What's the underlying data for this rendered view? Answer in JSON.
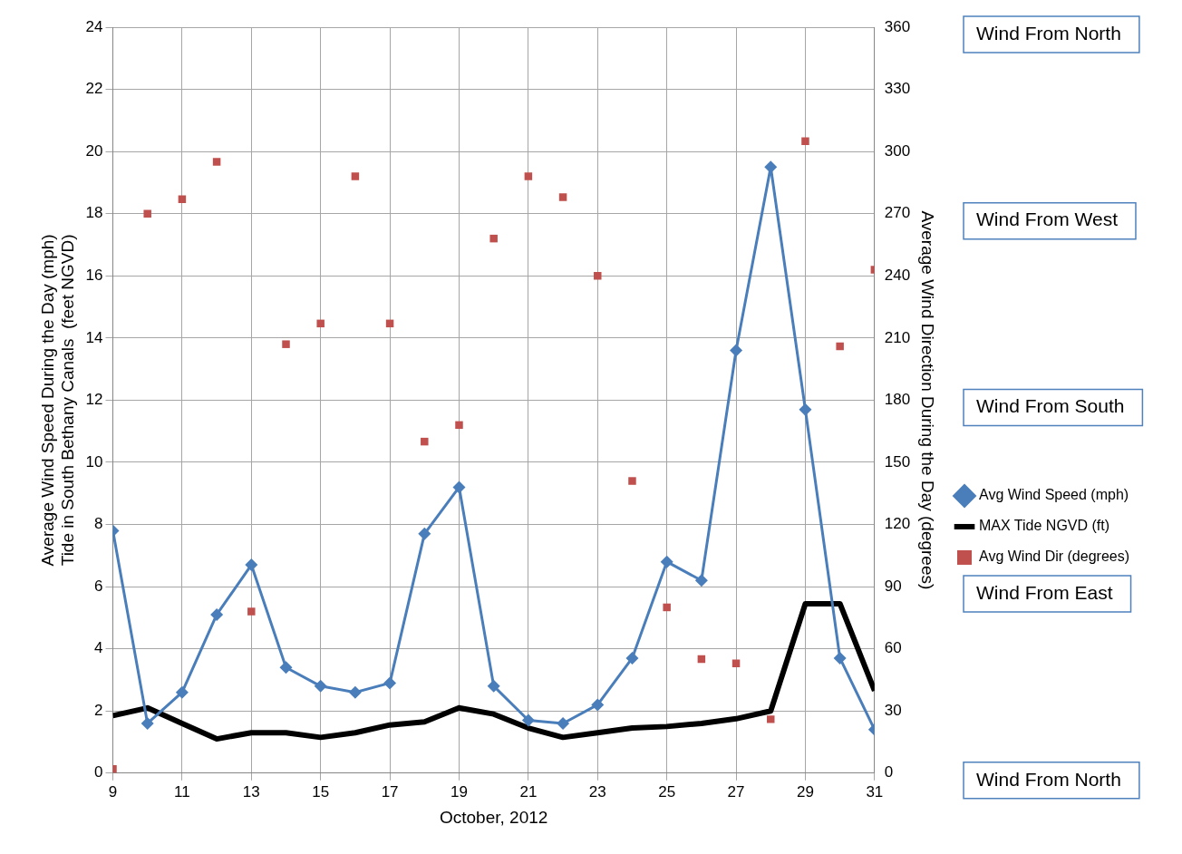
{
  "chart_data": {
    "type": "line",
    "xlabel": "October, 2012",
    "ylabel": "Average Wind Speed During the Day (mph)\nTide in South Bethany Canals  (feet NGVD)",
    "y2label": "Average Wind Direction During the Day (degrees)",
    "x": [
      9,
      10,
      11,
      12,
      13,
      14,
      15,
      16,
      17,
      18,
      19,
      20,
      21,
      22,
      23,
      24,
      25,
      26,
      27,
      28,
      29,
      30,
      31
    ],
    "xlim": [
      9,
      31
    ],
    "xticks": [
      9,
      11,
      13,
      15,
      17,
      19,
      21,
      23,
      25,
      27,
      29,
      31
    ],
    "ylim": [
      0,
      24
    ],
    "yticks": [
      0,
      2,
      4,
      6,
      8,
      10,
      12,
      14,
      16,
      18,
      20,
      22,
      24
    ],
    "y2lim": [
      0,
      360
    ],
    "y2ticks": [
      0,
      30,
      60,
      90,
      120,
      150,
      180,
      210,
      240,
      270,
      300,
      330,
      360
    ],
    "grid": true,
    "legend": "right",
    "series": [
      {
        "name": "Avg Wind Speed (mph)",
        "type": "line",
        "color": "#4a7ebb",
        "marker": "diamond",
        "values": [
          7.8,
          1.6,
          2.6,
          5.1,
          6.7,
          3.4,
          2.8,
          2.6,
          2.9,
          7.7,
          9.2,
          2.8,
          1.7,
          1.6,
          2.2,
          3.7,
          6.8,
          6.2,
          13.6,
          19.5,
          11.7,
          3.7,
          1.4
        ]
      },
      {
        "name": "MAX Tide NGVD (ft)",
        "type": "line",
        "color": "#000000",
        "marker": "none",
        "values": [
          1.85,
          2.1,
          1.6,
          1.1,
          1.3,
          1.3,
          1.15,
          1.3,
          1.55,
          1.65,
          2.1,
          1.9,
          1.45,
          1.15,
          1.3,
          1.45,
          1.5,
          1.6,
          1.75,
          2.0,
          5.45,
          5.45,
          2.65
        ]
      },
      {
        "name": "Avg Wind Dir (degrees)",
        "type": "scatter",
        "axis": "y2",
        "color": "#c0504d",
        "marker": "square",
        "values": [
          2,
          270,
          277,
          295,
          78,
          207,
          217,
          288,
          217,
          160,
          168,
          258,
          288,
          278,
          240,
          141,
          80,
          55,
          53,
          26,
          305,
          206,
          243
        ]
      }
    ],
    "annotations": [
      "Wind From North",
      "Wind From West",
      "Wind From South",
      "Wind From East",
      "Wind From North"
    ]
  }
}
